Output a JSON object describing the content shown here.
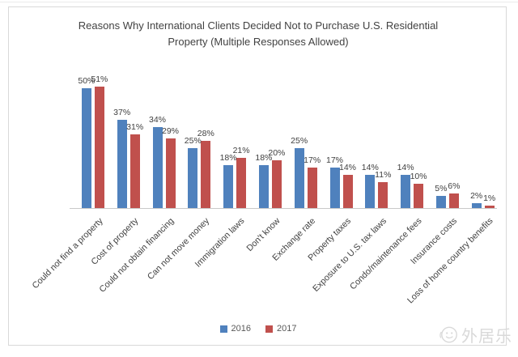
{
  "chart": {
    "title_line1": "Reasons Why International Clients Decided Not to Purchase U.S. Residential",
    "title_line2": "Property (Multiple Responses Allowed)"
  },
  "chart_data": {
    "type": "bar",
    "title": "Reasons Why International Clients Decided Not to Purchase U.S. Residential Property (Multiple Responses Allowed)",
    "categories": [
      "Could not find a property",
      "Cost of property",
      "Could not obtain financing",
      "Can not move money",
      "Immigration laws",
      "Don't know",
      "Exchange rate",
      "Property taxes",
      "Exposure to U.S. tax laws",
      "Condo/maintenance fees",
      "Insurance costs",
      "Loss of home country benefits"
    ],
    "series": [
      {
        "name": "2016",
        "color": "#4f81bd",
        "values": [
          50,
          37,
          34,
          25,
          18,
          18,
          25,
          17,
          14,
          14,
          5,
          2
        ]
      },
      {
        "name": "2017",
        "color": "#c0504d",
        "values": [
          51,
          31,
          29,
          28,
          21,
          20,
          17,
          14,
          11,
          10,
          6,
          1
        ]
      }
    ],
    "value_suffix": "%",
    "data_labels": true,
    "xlabel": "",
    "ylabel": "",
    "ylim": [
      0,
      55
    ],
    "grid": false,
    "y_axis_ticks_visible": false,
    "legend_position": "bottom-center",
    "category_label_rotation_deg": -45
  },
  "colors": {
    "title_text": "#424242",
    "label_text": "#404040",
    "legend_text": "#595959",
    "axis_line": "#c9c9c9",
    "chart_border": "#d9d9d9",
    "watermark": "#d9d9d9"
  },
  "watermark": {
    "text": "外居乐",
    "icon": "smiley-face-logo"
  }
}
